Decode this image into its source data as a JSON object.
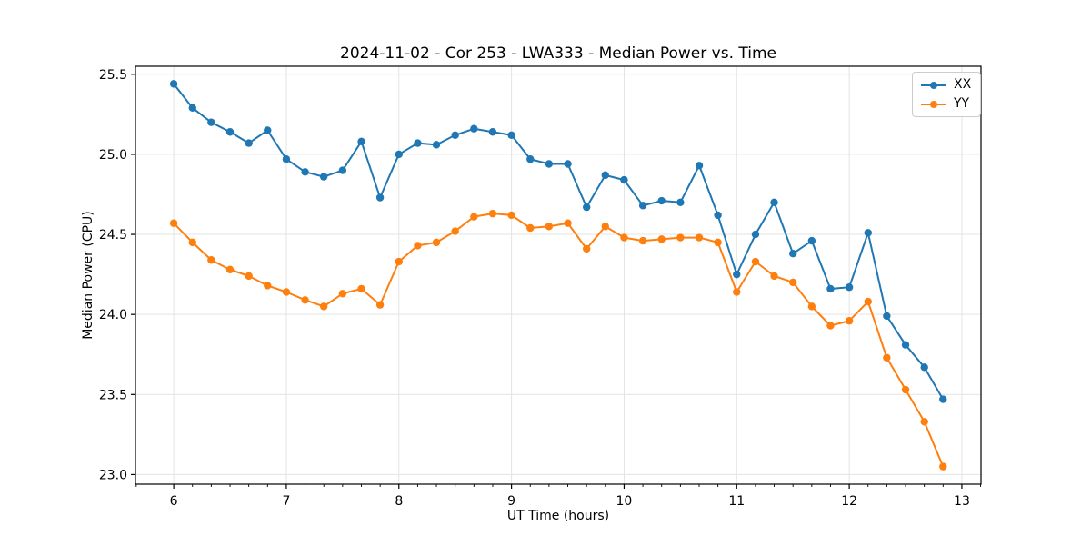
{
  "chart_data": {
    "type": "line",
    "title": "2024-11-02 - Cor 253 - LWA333 - Median Power vs. Time",
    "xlabel": "UT Time (hours)",
    "ylabel": "Median Power (CPU)",
    "xlim": [
      5.66,
      13.17
    ],
    "ylim": [
      22.94,
      25.55
    ],
    "xticks": [
      6,
      7,
      8,
      9,
      10,
      11,
      12,
      13
    ],
    "yticks": [
      23.0,
      23.5,
      24.0,
      24.5,
      25.0,
      25.5
    ],
    "x_minor_step": 0.1666667,
    "grid": true,
    "legend_position": "upper right",
    "colors": {
      "grid": "#e3e3e3",
      "axis": "#000000",
      "text": "#000000"
    },
    "x": [
      6.0,
      6.167,
      6.333,
      6.5,
      6.667,
      6.833,
      7.0,
      7.167,
      7.333,
      7.5,
      7.667,
      7.833,
      8.0,
      8.167,
      8.333,
      8.5,
      8.667,
      8.833,
      9.0,
      9.167,
      9.333,
      9.5,
      9.667,
      9.833,
      10.0,
      10.167,
      10.333,
      10.5,
      10.667,
      10.833,
      11.0,
      11.167,
      11.333,
      11.5,
      11.667,
      11.833,
      12.0,
      12.167,
      12.333,
      12.5,
      12.667,
      12.833
    ],
    "series": [
      {
        "name": "XX",
        "color": "#1f77b4",
        "values": [
          25.44,
          25.29,
          25.2,
          25.14,
          25.07,
          25.15,
          24.97,
          24.89,
          24.86,
          24.9,
          25.08,
          24.73,
          25.0,
          25.07,
          25.06,
          25.12,
          25.16,
          25.14,
          25.12,
          24.97,
          24.94,
          24.94,
          24.67,
          24.87,
          24.84,
          24.68,
          24.71,
          24.7,
          24.93,
          24.62,
          24.25,
          24.5,
          24.7,
          24.38,
          24.46,
          24.16,
          24.17,
          24.51,
          23.99,
          23.81,
          23.67,
          23.47
        ]
      },
      {
        "name": "YY",
        "color": "#ff7f0e",
        "values": [
          24.57,
          24.45,
          24.34,
          24.28,
          24.24,
          24.18,
          24.14,
          24.09,
          24.05,
          24.13,
          24.16,
          24.06,
          24.33,
          24.43,
          24.45,
          24.52,
          24.61,
          24.63,
          24.62,
          24.54,
          24.55,
          24.57,
          24.41,
          24.55,
          24.48,
          24.46,
          24.47,
          24.48,
          24.48,
          24.45,
          24.14,
          24.33,
          24.24,
          24.2,
          24.05,
          23.93,
          23.96,
          24.08,
          23.73,
          23.53,
          23.33,
          23.05
        ]
      }
    ]
  }
}
